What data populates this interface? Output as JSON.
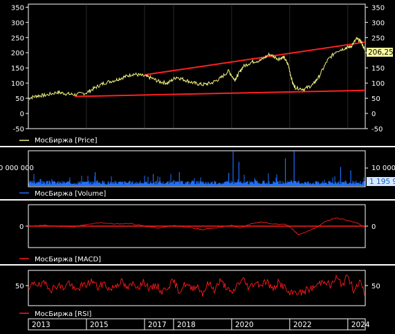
{
  "colors": {
    "background": "#000000",
    "frame": "#ffffff",
    "price": "#f0f080",
    "trendline": "#ff2020",
    "volume": "#1e6fff",
    "macd": "#ff1a1a",
    "rsi": "#ff1a1a",
    "last_value_box": "#ffffa0",
    "volume_value_box": "#d8e8ff"
  },
  "x_axis": {
    "ticks": [
      "2013",
      "2015",
      "2017",
      "2018",
      "2020",
      "2022",
      "2024"
    ],
    "tick_positions_year": [
      2013.0,
      2015.0,
      2017.0,
      2018.0,
      2020.0,
      2022.0,
      2024.0
    ],
    "range_year": [
      2013.0,
      2024.6
    ]
  },
  "chart_data": [
    {
      "type": "line",
      "panel": "price",
      "legend": "МосБиржа [Price]",
      "ylim": [
        -50,
        360
      ],
      "yticks": [
        "350",
        "300",
        "250",
        "200",
        "150",
        "100",
        "50",
        "0",
        "-50"
      ],
      "ytick_values": [
        350,
        300,
        250,
        200,
        150,
        100,
        50,
        0,
        -50
      ],
      "last_value": "206,25",
      "series": [
        {
          "key": "price",
          "x": [
            2013.0,
            2013.3,
            2013.6,
            2014.0,
            2014.3,
            2014.6,
            2015.0,
            2015.3,
            2015.6,
            2016.0,
            2016.3,
            2016.6,
            2016.9,
            2017.2,
            2017.5,
            2017.8,
            2018.1,
            2018.4,
            2018.7,
            2019.0,
            2019.3,
            2019.6,
            2019.9,
            2020.1,
            2020.2,
            2020.4,
            2020.7,
            2021.0,
            2021.3,
            2021.6,
            2021.8,
            2021.95,
            2022.1,
            2022.2,
            2022.5,
            2022.8,
            2023.0,
            2023.3,
            2023.6,
            2023.9,
            2024.1,
            2024.3,
            2024.45,
            2024.6
          ],
          "y": [
            50,
            58,
            60,
            70,
            65,
            62,
            68,
            85,
            100,
            110,
            120,
            130,
            125,
            118,
            105,
            100,
            120,
            110,
            100,
            95,
            100,
            115,
            140,
            110,
            125,
            155,
            170,
            175,
            195,
            180,
            185,
            160,
            100,
            85,
            80,
            95,
            120,
            175,
            205,
            215,
            220,
            245,
            238,
            206
          ]
        }
      ],
      "trendlines": [
        {
          "x": [
            2017.0,
            2024.6
          ],
          "y": [
            127,
            235
          ]
        },
        {
          "x": [
            2014.6,
            2024.6
          ],
          "y": [
            56,
            76
          ]
        }
      ]
    },
    {
      "type": "bar",
      "panel": "volume",
      "legend": "МосБиржа [Volume]",
      "ytick_left": "0 000 000",
      "ytick_right": "10 000",
      "last_value": "1 195 9",
      "ylim": [
        0,
        100
      ],
      "baseline_level": 12,
      "spikes": [
        {
          "x": 2020.05,
          "y": 100
        },
        {
          "x": 2020.25,
          "y": 70
        },
        {
          "x": 2021.85,
          "y": 80
        },
        {
          "x": 2022.15,
          "y": 105
        },
        {
          "x": 2023.75,
          "y": 55
        },
        {
          "x": 2024.1,
          "y": 45
        },
        {
          "x": 2015.3,
          "y": 40
        },
        {
          "x": 2017.3,
          "y": 35
        },
        {
          "x": 2018.2,
          "y": 40
        },
        {
          "x": 2019.9,
          "y": 38
        }
      ]
    },
    {
      "type": "line",
      "panel": "macd",
      "legend": "МосБиржа [MACD]",
      "ytick": "0",
      "ylim": [
        -30,
        30
      ],
      "series": [
        {
          "key": "macd",
          "x": [
            2013.0,
            2013.5,
            2014.0,
            2014.5,
            2015.0,
            2015.5,
            2016.0,
            2016.5,
            2017.0,
            2017.5,
            2018.0,
            2018.5,
            2019.0,
            2019.5,
            2020.0,
            2020.3,
            2020.7,
            2021.0,
            2021.5,
            2021.9,
            2022.1,
            2022.3,
            2022.6,
            2022.9,
            2023.2,
            2023.6,
            2024.0,
            2024.3,
            2024.6
          ],
          "y": [
            0,
            1,
            0,
            -1,
            2,
            5,
            3,
            4,
            0,
            -3,
            1,
            -2,
            -5,
            -2,
            1,
            -3,
            4,
            6,
            3,
            2,
            -5,
            -12,
            -8,
            -2,
            6,
            12,
            8,
            5,
            -2
          ]
        }
      ]
    },
    {
      "type": "line",
      "panel": "rsi",
      "legend": "МосБиржа [RSI]",
      "ytick": "50",
      "ylim": [
        0,
        100
      ],
      "series": [
        {
          "key": "rsi",
          "x": [
            2013.0,
            2013.2,
            2013.4,
            2013.6,
            2013.8,
            2014.0,
            2014.2,
            2014.4,
            2014.6,
            2014.8,
            2015.0,
            2015.2,
            2015.4,
            2015.6,
            2015.8,
            2016.0,
            2016.2,
            2016.4,
            2016.6,
            2016.8,
            2017.0,
            2017.2,
            2017.4,
            2017.6,
            2017.8,
            2018.0,
            2018.2,
            2018.4,
            2018.6,
            2018.8,
            2019.0,
            2019.2,
            2019.4,
            2019.6,
            2019.8,
            2020.0,
            2020.2,
            2020.4,
            2020.6,
            2020.8,
            2021.0,
            2021.2,
            2021.4,
            2021.6,
            2021.8,
            2022.0,
            2022.2,
            2022.4,
            2022.6,
            2022.8,
            2023.0,
            2023.2,
            2023.4,
            2023.6,
            2023.8,
            2024.0,
            2024.2,
            2024.4,
            2024.6
          ],
          "y": [
            40,
            70,
            55,
            65,
            45,
            60,
            50,
            68,
            40,
            55,
            60,
            72,
            50,
            65,
            45,
            58,
            70,
            48,
            62,
            55,
            68,
            45,
            60,
            38,
            55,
            70,
            40,
            62,
            48,
            58,
            35,
            65,
            45,
            70,
            55,
            30,
            62,
            75,
            50,
            68,
            60,
            72,
            45,
            65,
            55,
            30,
            40,
            35,
            45,
            50,
            62,
            75,
            55,
            80,
            60,
            85,
            45,
            70,
            30
          ]
        }
      ]
    }
  ]
}
